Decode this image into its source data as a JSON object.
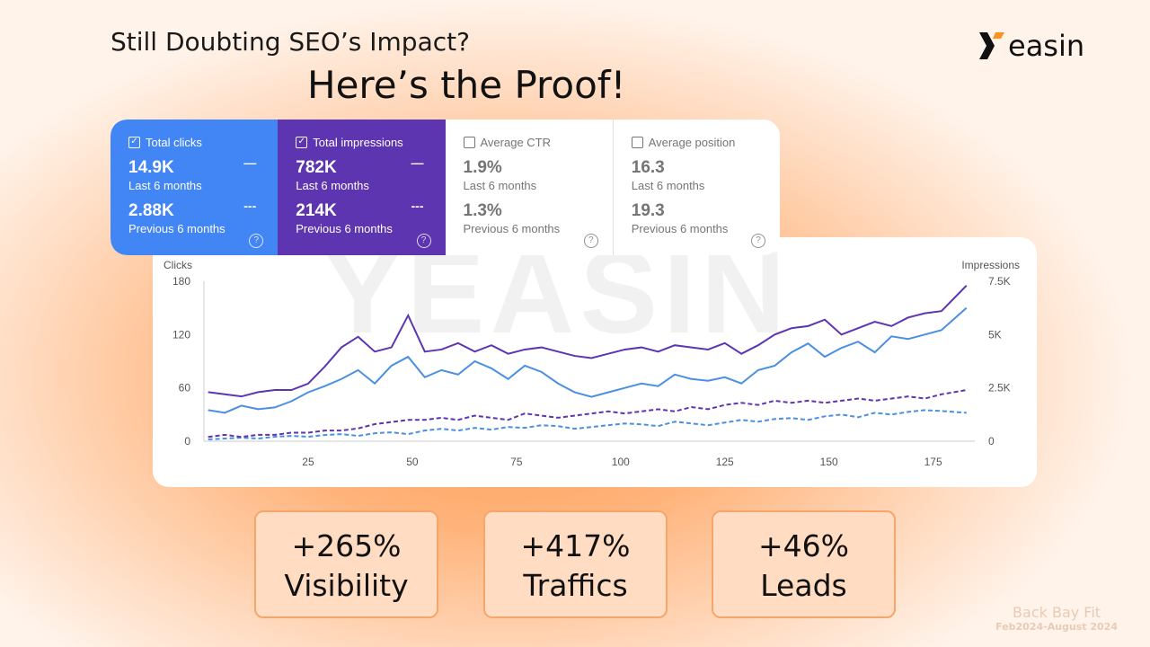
{
  "headline": {
    "line1": "Still Doubting SEO’s Impact?",
    "line2": "Here’s the Proof!"
  },
  "logo": {
    "text": "easin",
    "mark": "Y"
  },
  "watermark": "YEASIN",
  "metrics": [
    {
      "label": "Total clicks",
      "checked": true,
      "value": "14.9K",
      "period": "Last 6 months",
      "prev_value": "2.88K",
      "prev_period": "Previous 6 months",
      "color": "#4285f4"
    },
    {
      "label": "Total impressions",
      "checked": true,
      "value": "782K",
      "period": "Last 6 months",
      "prev_value": "214K",
      "prev_period": "Previous 6 months",
      "color": "#5e35b1"
    },
    {
      "label": "Average CTR",
      "checked": false,
      "value": "1.9%",
      "period": "Last 6 months",
      "prev_value": "1.3%",
      "prev_period": "Previous 6 months"
    },
    {
      "label": "Average position",
      "checked": false,
      "value": "16.3",
      "period": "Last 6 months",
      "prev_value": "19.3",
      "prev_period": "Previous 6 months"
    }
  ],
  "chart_data": {
    "type": "line",
    "ylabel": "Clicks",
    "y2label": "Impressions",
    "ylim": [
      0,
      180
    ],
    "y2lim": [
      0,
      7500
    ],
    "yticks": [
      "0",
      "60",
      "120",
      "180"
    ],
    "y2ticks": [
      "0",
      "2.5K",
      "5K",
      "7.5K"
    ],
    "xticks": [
      "25",
      "50",
      "75",
      "100",
      "125",
      "150",
      "175"
    ],
    "x": [
      1,
      5,
      9,
      13,
      17,
      21,
      25,
      29,
      33,
      37,
      41,
      45,
      49,
      53,
      57,
      61,
      65,
      69,
      73,
      77,
      81,
      85,
      89,
      93,
      97,
      101,
      105,
      109,
      113,
      117,
      121,
      125,
      129,
      133,
      137,
      141,
      145,
      149,
      153,
      157,
      161,
      165,
      169,
      173,
      177,
      183
    ],
    "series": [
      {
        "name": "Clicks (last 6 months)",
        "axis": "left",
        "style": "solid",
        "color": "#4a90e2",
        "values": [
          35,
          32,
          40,
          36,
          38,
          45,
          55,
          62,
          70,
          80,
          65,
          85,
          95,
          72,
          80,
          75,
          90,
          82,
          70,
          85,
          78,
          65,
          55,
          50,
          55,
          60,
          65,
          62,
          75,
          70,
          68,
          72,
          65,
          80,
          85,
          100,
          110,
          95,
          105,
          112,
          100,
          118,
          115,
          120,
          125,
          150
        ]
      },
      {
        "name": "Impressions (last 6 months)",
        "axis": "right",
        "style": "solid",
        "color": "#5e35b1",
        "values": [
          2300,
          2200,
          2100,
          2300,
          2400,
          2400,
          2700,
          3500,
          4400,
          4900,
          4200,
          4400,
          5900,
          4200,
          4300,
          4600,
          4200,
          4500,
          4100,
          4300,
          4400,
          4200,
          4000,
          3900,
          4100,
          4300,
          4400,
          4200,
          4500,
          4400,
          4300,
          4600,
          4100,
          4500,
          5000,
          5300,
          5400,
          5700,
          5000,
          5300,
          5600,
          5400,
          5800,
          6000,
          6100,
          7300
        ]
      },
      {
        "name": "Clicks (previous 6 months)",
        "axis": "left",
        "style": "dashed",
        "color": "#4a90e2",
        "values": [
          2,
          3,
          4,
          3,
          5,
          6,
          5,
          7,
          8,
          6,
          9,
          10,
          8,
          12,
          14,
          12,
          15,
          13,
          16,
          15,
          18,
          17,
          14,
          16,
          18,
          20,
          19,
          17,
          22,
          20,
          18,
          21,
          24,
          22,
          25,
          26,
          24,
          28,
          30,
          27,
          32,
          30,
          33,
          35,
          34,
          32
        ]
      },
      {
        "name": "Impressions (previous 6 months)",
        "axis": "right",
        "style": "dashed",
        "color": "#5e35b1",
        "values": [
          200,
          300,
          200,
          300,
          300,
          400,
          400,
          500,
          500,
          600,
          800,
          900,
          1000,
          1000,
          1100,
          1000,
          1200,
          1100,
          1000,
          1300,
          1200,
          1100,
          1200,
          1300,
          1400,
          1300,
          1400,
          1500,
          1400,
          1600,
          1500,
          1700,
          1800,
          1700,
          1900,
          1800,
          1900,
          1800,
          1900,
          2000,
          1900,
          2000,
          2100,
          2000,
          2200,
          2400
        ]
      }
    ]
  },
  "stats": [
    {
      "value": "+265%",
      "label": "Visibility"
    },
    {
      "value": "+417%",
      "label": "Traffics"
    },
    {
      "value": "+46%",
      "label": "Leads"
    }
  ],
  "footer": {
    "client": "Back Bay Fit",
    "period": "Feb2024-August 2024"
  }
}
